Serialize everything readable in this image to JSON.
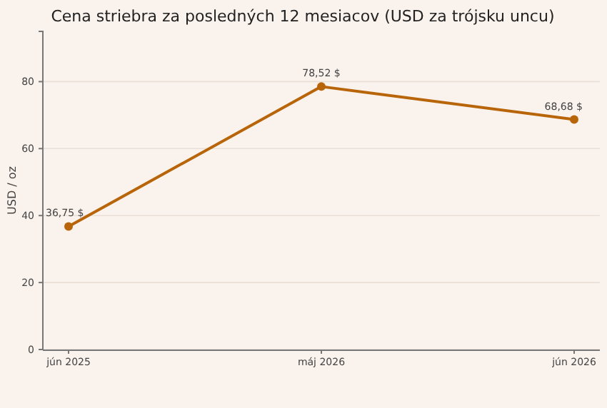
{
  "chart_data": {
    "type": "line",
    "title": "Cena striebra za posledných 12 mesiacov (USD za trójsku uncu)",
    "ylabel": "USD / oz",
    "categories": [
      "jún 2025",
      "máj 2026",
      "jún 2026"
    ],
    "series": [
      {
        "color": "#b8650a",
        "values": [
          36.75,
          78.52,
          68.68
        ],
        "value_labels": [
          "36,75 $",
          "78,52 $",
          "68,68 $"
        ]
      }
    ],
    "ylim": [
      0,
      95
    ],
    "yticks": [
      0,
      20,
      40,
      60,
      80
    ],
    "grid": "y",
    "marker": "circle"
  }
}
